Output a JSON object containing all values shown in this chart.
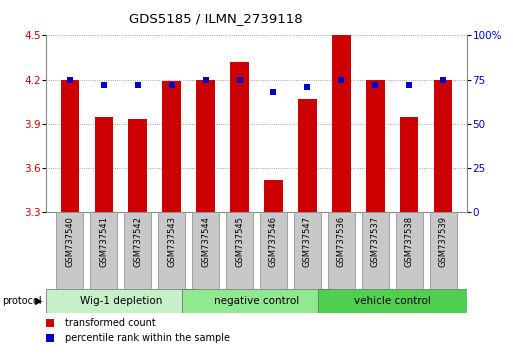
{
  "title": "GDS5185 / ILMN_2739118",
  "samples": [
    "GSM737540",
    "GSM737541",
    "GSM737542",
    "GSM737543",
    "GSM737544",
    "GSM737545",
    "GSM737546",
    "GSM737547",
    "GSM737536",
    "GSM737537",
    "GSM737538",
    "GSM737539"
  ],
  "red_values": [
    4.2,
    3.95,
    3.93,
    4.19,
    4.2,
    4.32,
    3.52,
    4.07,
    4.5,
    4.2,
    3.95,
    4.2
  ],
  "blue_values": [
    75,
    72,
    72,
    72,
    75,
    75,
    68,
    71,
    75,
    72,
    72,
    75
  ],
  "groups": [
    {
      "label": "Wig-1 depletion",
      "start": 0,
      "end": 4,
      "color": "#c8f0c8"
    },
    {
      "label": "negative control",
      "start": 4,
      "end": 8,
      "color": "#90e890"
    },
    {
      "label": "vehicle control",
      "start": 8,
      "end": 12,
      "color": "#50d050"
    }
  ],
  "ylim_left": [
    3.3,
    4.5
  ],
  "ylim_right": [
    0,
    100
  ],
  "yticks_left": [
    3.3,
    3.6,
    3.9,
    4.2,
    4.5
  ],
  "yticks_right": [
    0,
    25,
    50,
    75,
    100
  ],
  "ytick_labels_right": [
    "0",
    "25",
    "50",
    "75",
    "100%"
  ],
  "bar_color": "#cc0000",
  "dot_color": "#0000cc",
  "bar_width": 0.55,
  "grid_color": "#888888",
  "tick_label_color_left": "#cc0000",
  "tick_label_color_right": "#0000cc",
  "legend_red_label": "transformed count",
  "legend_blue_label": "percentile rank within the sample",
  "sample_box_color": "#c8c8c8",
  "sample_box_edge": "#888888"
}
